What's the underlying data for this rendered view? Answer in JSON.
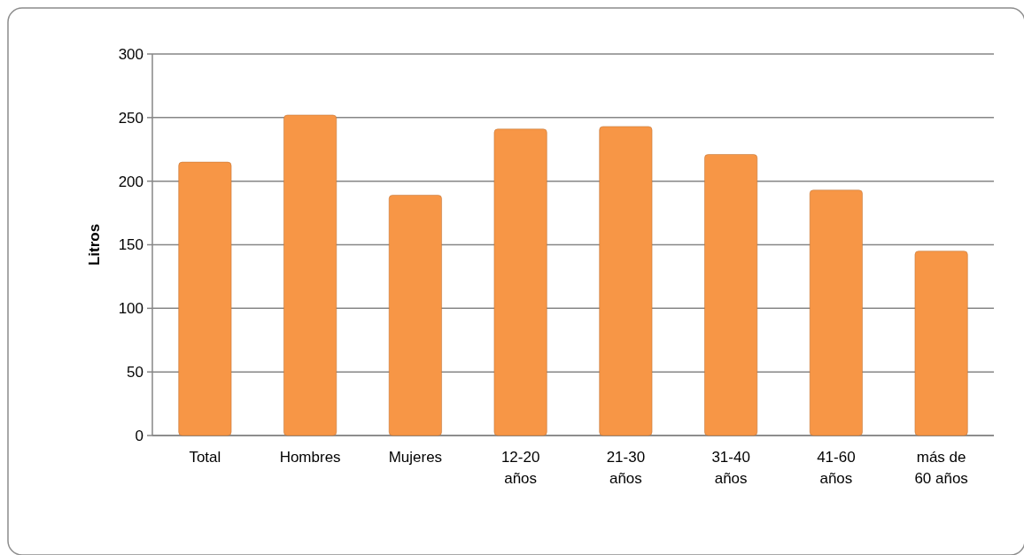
{
  "chart_data": {
    "type": "bar",
    "ylabel": "Litros",
    "categories": [
      "Total",
      "Hombres",
      "Mujeres",
      "12-20 años",
      "21-30 años",
      "31-40 años",
      "41-60 años",
      "más de 60 años"
    ],
    "values": [
      215,
      252,
      189,
      241,
      243,
      221,
      193,
      145
    ],
    "color": "#f79646",
    "ylim": [
      0,
      300
    ],
    "yticks": [
      0,
      50,
      100,
      150,
      200,
      250,
      300
    ],
    "grid": "y"
  }
}
